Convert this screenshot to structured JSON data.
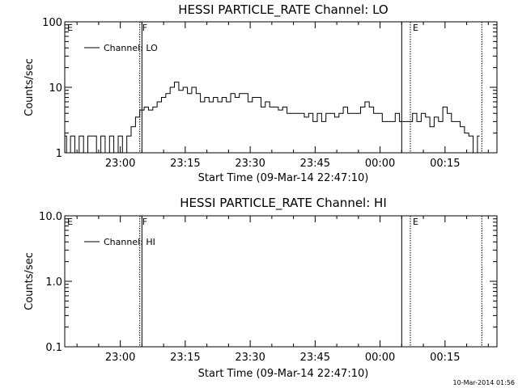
{
  "footer_timestamp": "10-Mar-2014 01:56",
  "chart_data": [
    {
      "type": "line",
      "title": "HESSI PARTICLE_RATE Channel: LO",
      "xlabel": "Start Time (09-Mar-14 22:47:10)",
      "ylabel": "Counts/sec",
      "yscale": "log",
      "ylim": [
        1,
        100
      ],
      "xlim": [
        "22:47:10",
        "00:27:00"
      ],
      "x_ticks": [
        "23:00",
        "23:15",
        "23:30",
        "23:45",
        "00:00",
        "00:15"
      ],
      "y_ticks": [
        "1",
        "10",
        "100"
      ],
      "legend": {
        "label": "Channel: LO",
        "placement": "top-left"
      },
      "markers": [
        {
          "label": "E",
          "time": "22:47:10",
          "style": "none"
        },
        {
          "label": "F",
          "time": "23:04:30",
          "style": "dotted"
        },
        {
          "label": "",
          "time": "23:05:00",
          "style": "solid"
        },
        {
          "label": "",
          "time": "00:05:00",
          "style": "solid"
        },
        {
          "label": "E",
          "time": "00:07:00",
          "style": "dotted"
        },
        {
          "label": "",
          "time": "00:23:30",
          "style": "dotted"
        }
      ],
      "series": [
        {
          "x": [
            "22:47:10",
            "22:48",
            "22:49",
            "22:50",
            "22:51",
            "22:52",
            "22:53",
            "22:54",
            "22:55",
            "22:56",
            "22:57",
            "22:58",
            "22:59",
            "23:00",
            "23:01",
            "23:02",
            "23:03",
            "23:04",
            "23:05",
            "23:06",
            "23:07",
            "23:08",
            "23:09",
            "23:10",
            "23:11",
            "23:12",
            "23:13",
            "23:14",
            "23:15",
            "23:16",
            "23:17",
            "23:18",
            "23:19",
            "23:20",
            "23:21",
            "23:22",
            "23:23",
            "23:24",
            "23:25",
            "23:26",
            "23:27",
            "23:28",
            "23:29",
            "23:30",
            "23:31",
            "23:32",
            "23:33",
            "23:34",
            "23:35",
            "23:36",
            "23:37",
            "23:38",
            "23:39",
            "23:40",
            "23:41",
            "23:42",
            "23:43",
            "23:44",
            "23:45",
            "23:46",
            "23:47",
            "23:48",
            "23:49",
            "23:50",
            "23:51",
            "23:52",
            "23:53",
            "23:54",
            "23:55",
            "23:56",
            "23:57",
            "23:58",
            "23:59",
            "00:00",
            "00:01",
            "00:02",
            "00:03",
            "00:04",
            "00:05",
            "00:06",
            "00:07",
            "00:08",
            "00:09",
            "00:10",
            "00:11",
            "00:12",
            "00:13",
            "00:14",
            "00:15",
            "00:16",
            "00:17",
            "00:18",
            "00:19",
            "00:20",
            "00:21",
            "00:22",
            "00:23"
          ],
          "y": [
            1.8,
            1,
            1.8,
            1,
            1.8,
            1,
            1.8,
            1.8,
            1,
            1.8,
            1,
            1.8,
            1,
            1.8,
            1,
            1.8,
            2.5,
            3.5,
            4.5,
            5,
            4.5,
            5,
            6,
            7,
            8,
            10,
            12,
            9,
            10,
            8,
            10,
            8,
            6,
            7,
            6,
            7,
            6,
            7,
            6,
            8,
            7,
            8,
            8,
            6,
            7,
            7,
            5,
            6,
            5,
            5,
            4.5,
            5,
            4,
            4,
            4,
            4,
            3.5,
            4,
            3,
            4,
            3,
            4,
            4,
            3.5,
            4,
            5,
            4,
            4,
            4,
            5,
            6,
            5,
            4,
            4,
            3,
            3,
            3,
            4,
            3,
            3,
            3,
            4,
            3,
            4,
            3.5,
            2.5,
            3.5,
            3,
            5,
            4,
            3,
            3,
            2.5,
            2,
            1.8,
            1,
            1.8
          ]
        }
      ]
    },
    {
      "type": "line",
      "title": "HESSI PARTICLE_RATE Channel: HI",
      "xlabel": "Start Time (09-Mar-14 22:47:10)",
      "ylabel": "Counts/sec",
      "yscale": "log",
      "ylim": [
        0.1,
        10
      ],
      "xlim": [
        "22:47:10",
        "00:27:00"
      ],
      "x_ticks": [
        "23:00",
        "23:15",
        "23:30",
        "23:45",
        "00:00",
        "00:15"
      ],
      "y_ticks": [
        "0.1",
        "1.0",
        "10.0"
      ],
      "legend": {
        "label": "Channel: HI",
        "placement": "top-left"
      },
      "markers": [
        {
          "label": "E",
          "time": "22:47:10",
          "style": "none"
        },
        {
          "label": "F",
          "time": "23:04:30",
          "style": "dotted"
        },
        {
          "label": "",
          "time": "23:05:00",
          "style": "solid"
        },
        {
          "label": "",
          "time": "00:05:00",
          "style": "solid"
        },
        {
          "label": "E",
          "time": "00:07:00",
          "style": "dotted"
        },
        {
          "label": "",
          "time": "00:23:30",
          "style": "dotted"
        }
      ],
      "series": [
        {
          "x": [],
          "y": []
        }
      ]
    }
  ]
}
